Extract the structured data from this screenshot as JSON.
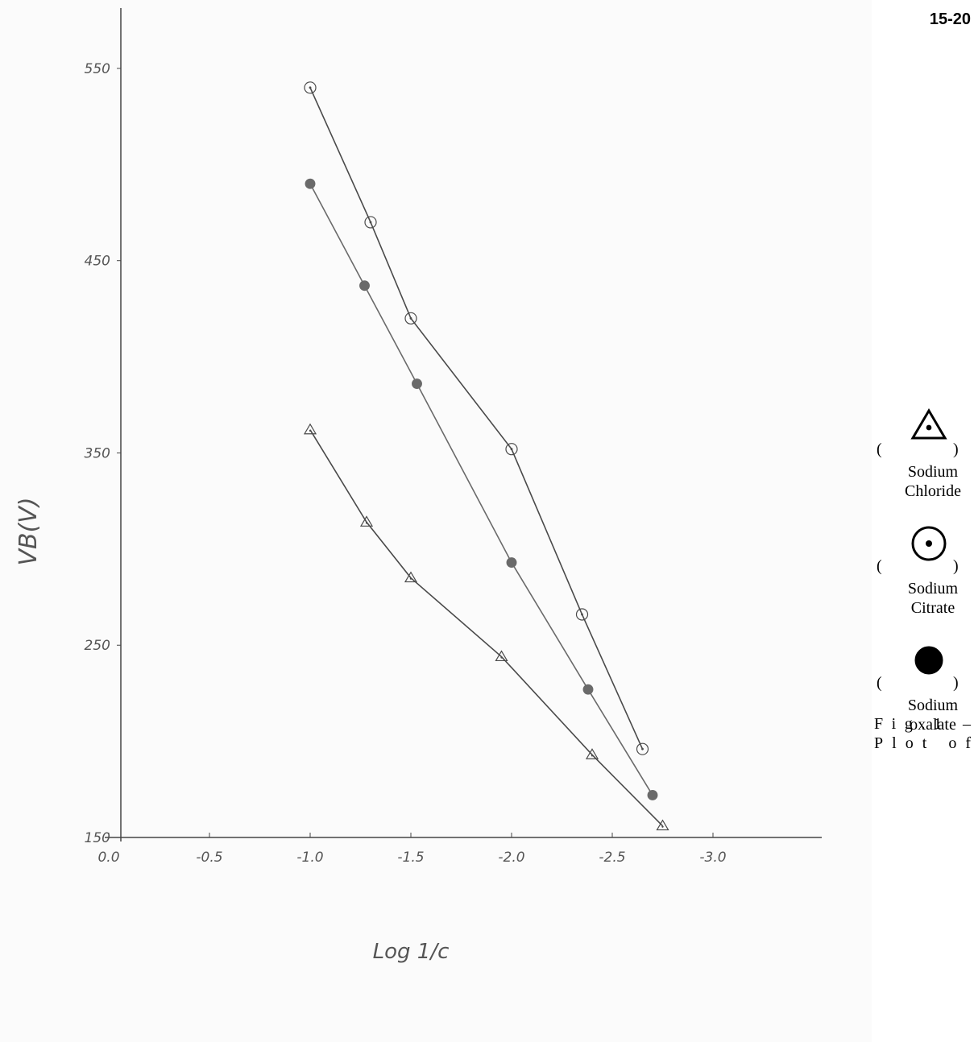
{
  "chart_data": {
    "type": "line",
    "page_number": "15-20",
    "x_label": "Log 1/c",
    "y_label": "VB(V)",
    "caption": "Fig.1 – Plot of",
    "legend_brackets": [
      "(",
      ")"
    ],
    "legend_position": "right",
    "grid": false,
    "xlim": [
      0.06,
      -3.54
    ],
    "ylim": [
      150,
      555
    ],
    "xticks": [
      {
        "value": 0,
        "label": "0.0"
      },
      -0.5,
      {
        "value": -1,
        "label": "-1.0"
      },
      -1.5,
      {
        "value": -2,
        "label": "-2.0"
      },
      -2.5,
      {
        "value": -3,
        "label": "-3.0"
      }
    ],
    "yticks": [
      150,
      250,
      350,
      450,
      550
    ],
    "series": [
      {
        "name": "Sodium Chloride",
        "marker": "triangle",
        "color": "#4a4a4a",
        "x": [
          -1.0,
          -1.28,
          -1.5,
          -1.95,
          -2.4,
          -2.75
        ],
        "values": [
          362,
          314,
          285,
          244,
          193,
          156
        ]
      },
      {
        "name": "Sodium Citrate",
        "marker": "dotted-circle",
        "color": "#4a4a4a",
        "x": [
          -1.0,
          -1.3,
          -1.5,
          -2.0,
          -2.35,
          -2.65
        ],
        "values": [
          540,
          470,
          420,
          352,
          266,
          196
        ]
      },
      {
        "name": "Sodium oxalate",
        "marker": "filled-circle",
        "color": "#6a6a6a",
        "x": [
          -1.0,
          -1.27,
          -1.53,
          -2.0,
          -2.38,
          -2.7
        ],
        "values": [
          490,
          437,
          386,
          293,
          227,
          172
        ]
      }
    ]
  }
}
